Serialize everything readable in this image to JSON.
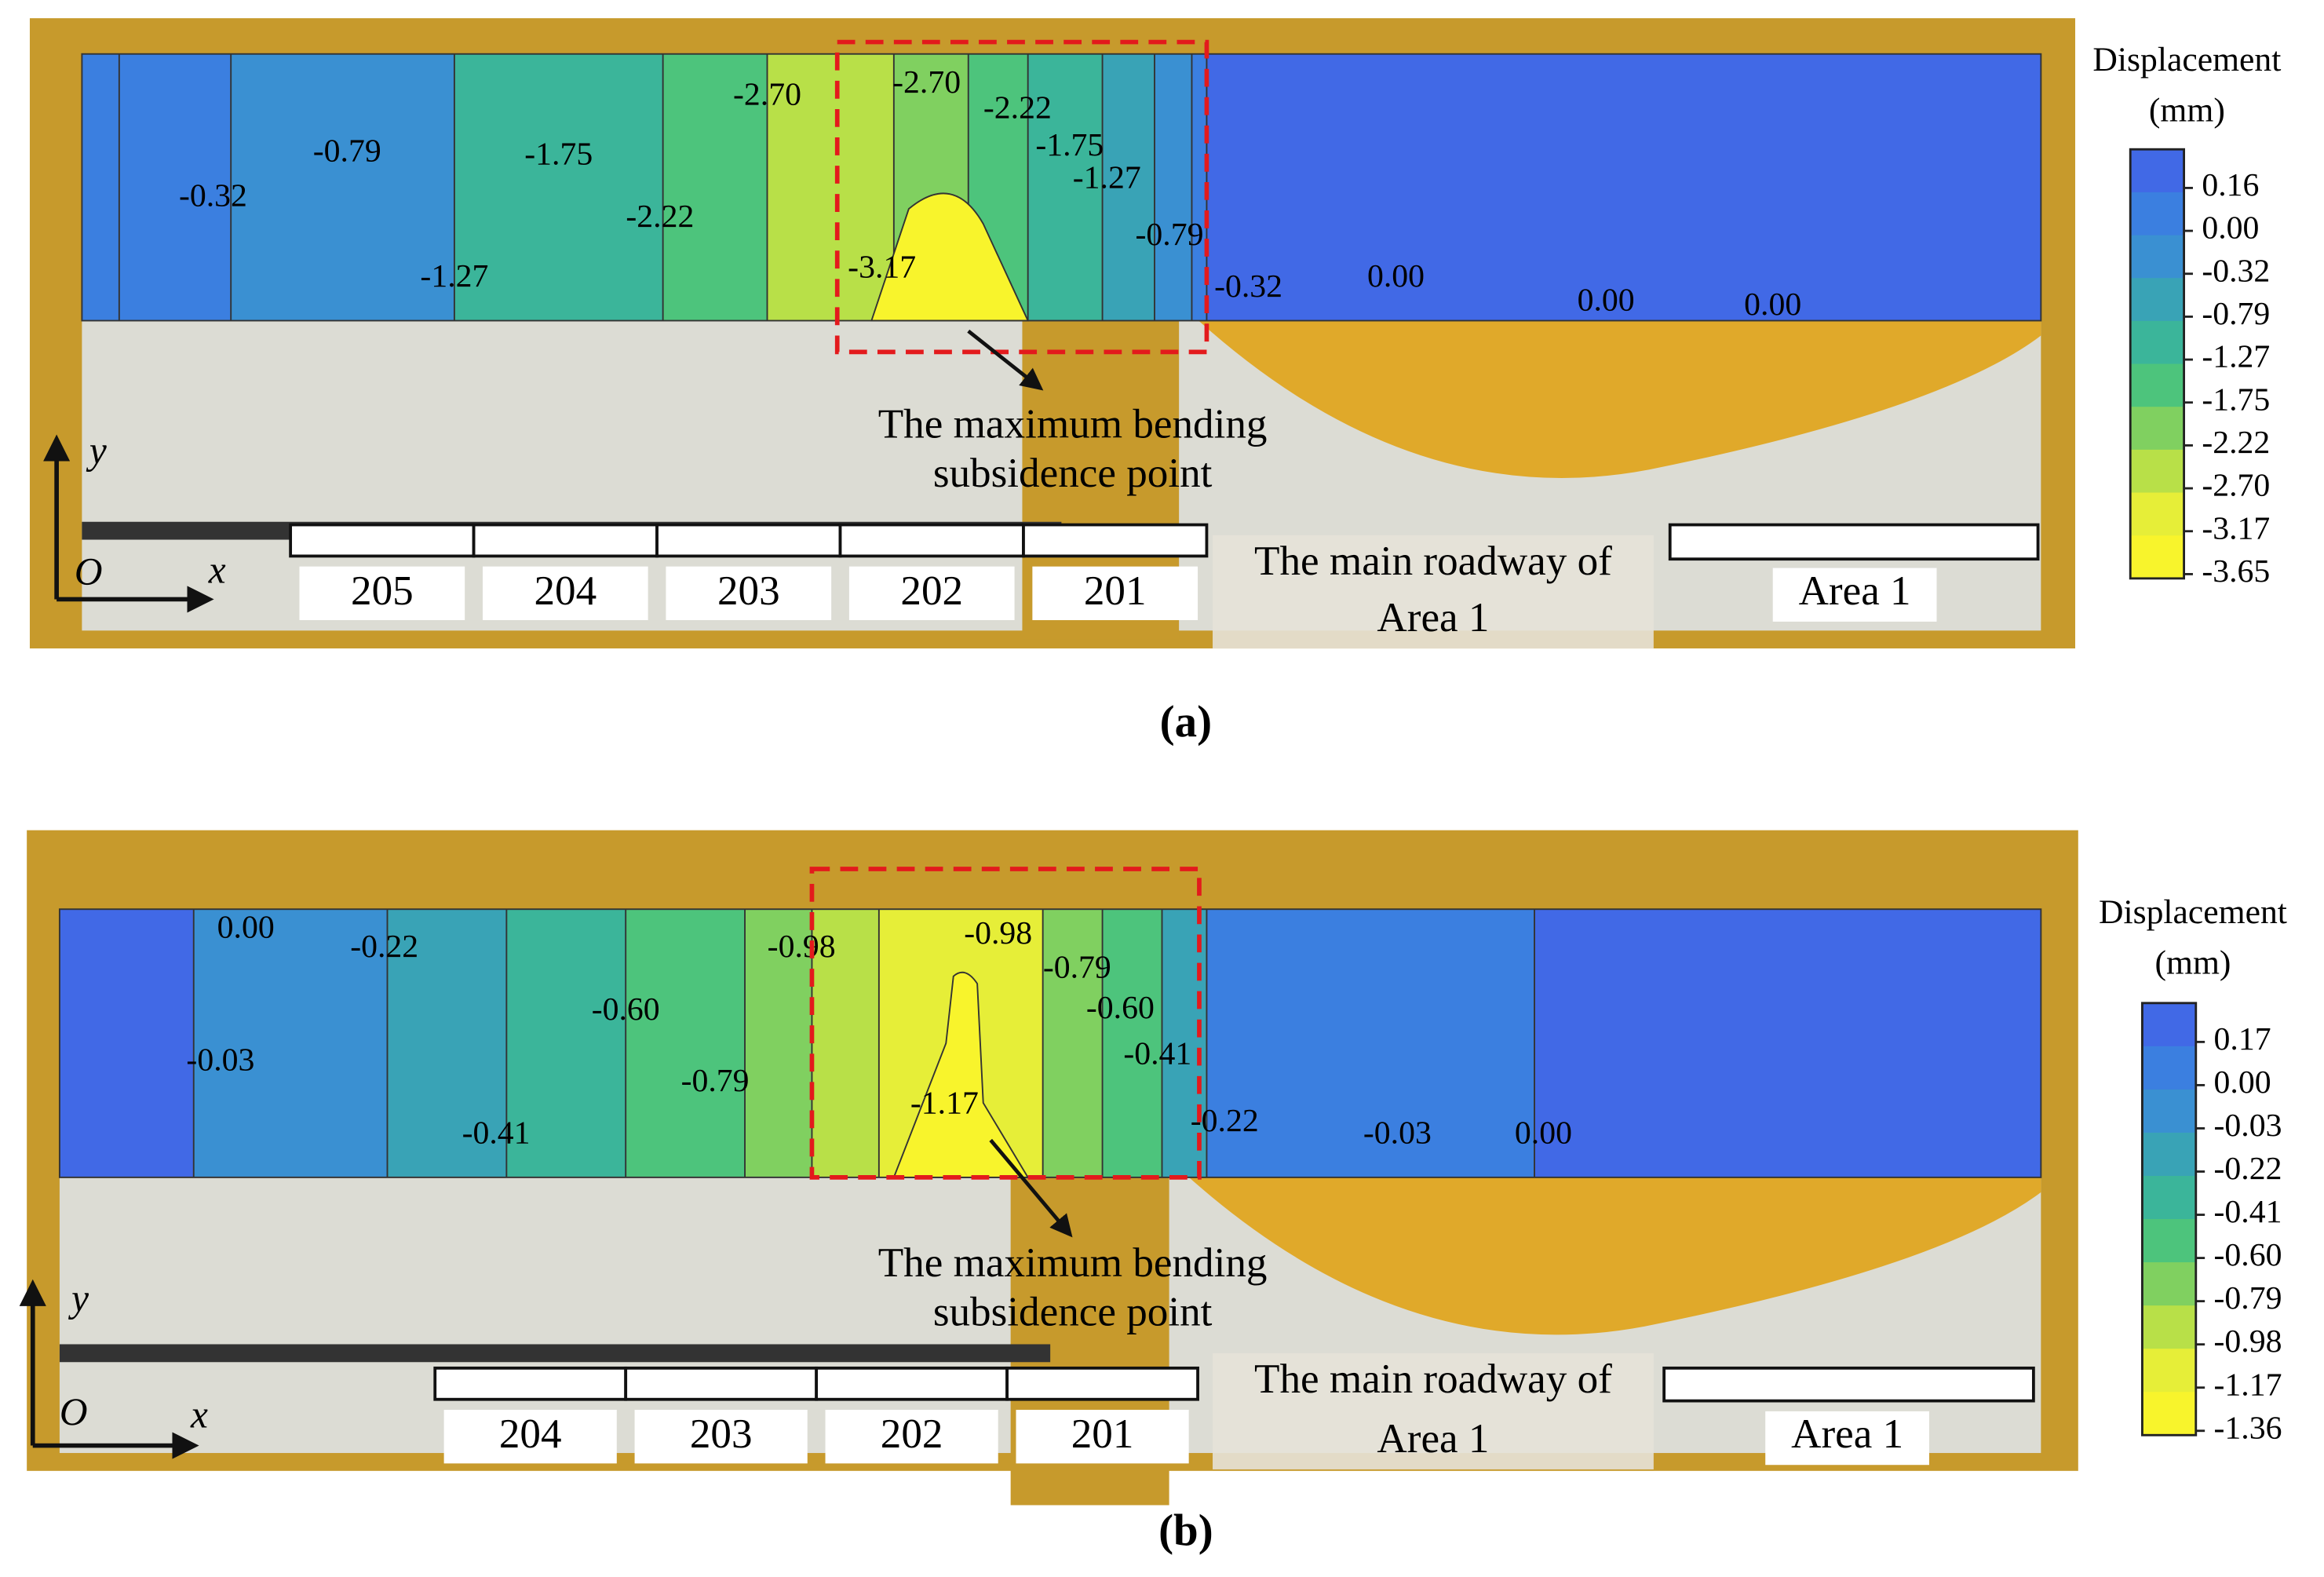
{
  "panels": [
    {
      "label": "(a)",
      "colorbar": {
        "title": "Displacement",
        "unit": "(mm)",
        "ticks": [
          "0.16",
          "0.00",
          "-0.32",
          "-0.79",
          "-1.27",
          "-1.75",
          "-2.22",
          "-2.70",
          "-3.17",
          "-3.65"
        ]
      },
      "contour_labels": [
        "-0.32",
        "-0.79",
        "-1.75",
        "-1.27",
        "-2.22",
        "-2.70",
        "-2.70",
        "-2.22",
        "-1.75",
        "-1.27",
        "-0.79",
        "-3.17",
        "-0.32",
        "0.00",
        "0.00",
        "0.00"
      ],
      "annotation": [
        "The maximum bending",
        "subsidence point"
      ],
      "axes": {
        "origin": "O",
        "x": "x",
        "y": "y"
      },
      "sections": [
        "205",
        "204",
        "203",
        "202",
        "201"
      ],
      "roadway": [
        "The main roadway of",
        "Area 1"
      ],
      "area": "Area 1"
    },
    {
      "label": "(b)",
      "colorbar": {
        "title": "Displacement",
        "unit": "(mm)",
        "ticks": [
          "0.17",
          "0.00",
          "-0.03",
          "-0.22",
          "-0.41",
          "-0.60",
          "-0.79",
          "-0.98",
          "-1.17",
          "-1.36"
        ]
      },
      "contour_labels": [
        "0.00",
        "-0.22",
        "-0.60",
        "-0.98",
        "-0.98",
        "-0.79",
        "-0.60",
        "-0.41",
        "-0.03",
        "-0.79",
        "-0.41",
        "-1.17",
        "-0.22",
        "-0.03",
        "0.00"
      ],
      "annotation": [
        "The maximum bending",
        "subsidence point"
      ],
      "axes": {
        "origin": "O",
        "x": "x",
        "y": "y"
      },
      "sections": [
        "204",
        "203",
        "202",
        "201"
      ],
      "roadway": [
        "The main roadway of",
        "Area 1"
      ],
      "area": "Area 1"
    }
  ]
}
